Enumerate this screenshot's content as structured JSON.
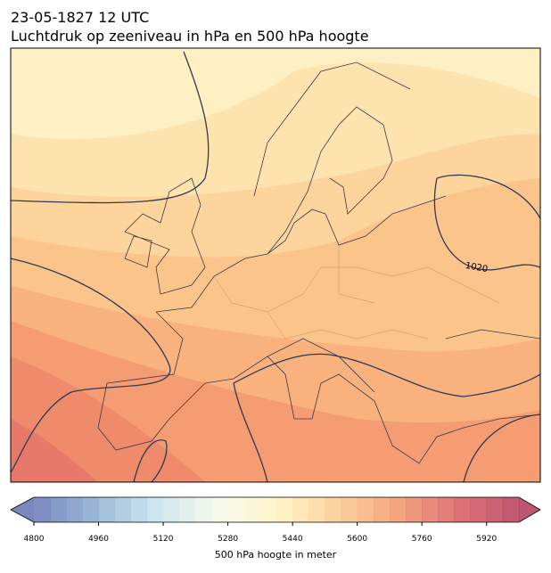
{
  "header": {
    "date": "23-05-1827 12 UTC",
    "title": "Luchtdruk op zeeniveau in hPa en 500 hPa hoogte"
  },
  "map": {
    "isobar_labels": [
      "1020"
    ]
  },
  "colorbar": {
    "label": "500 hPa hoogte in meter",
    "clim": [
      4800,
      6000
    ],
    "ticks": [
      4800,
      4960,
      5120,
      5280,
      5440,
      5600,
      5760,
      5920
    ],
    "colormap": [
      "#6272b4",
      "#89acd0",
      "#c4e2ee",
      "#f5f9e8",
      "#fef3c0",
      "#fcca8c",
      "#f3946a",
      "#d85a5c",
      "#b23a58"
    ]
  }
}
